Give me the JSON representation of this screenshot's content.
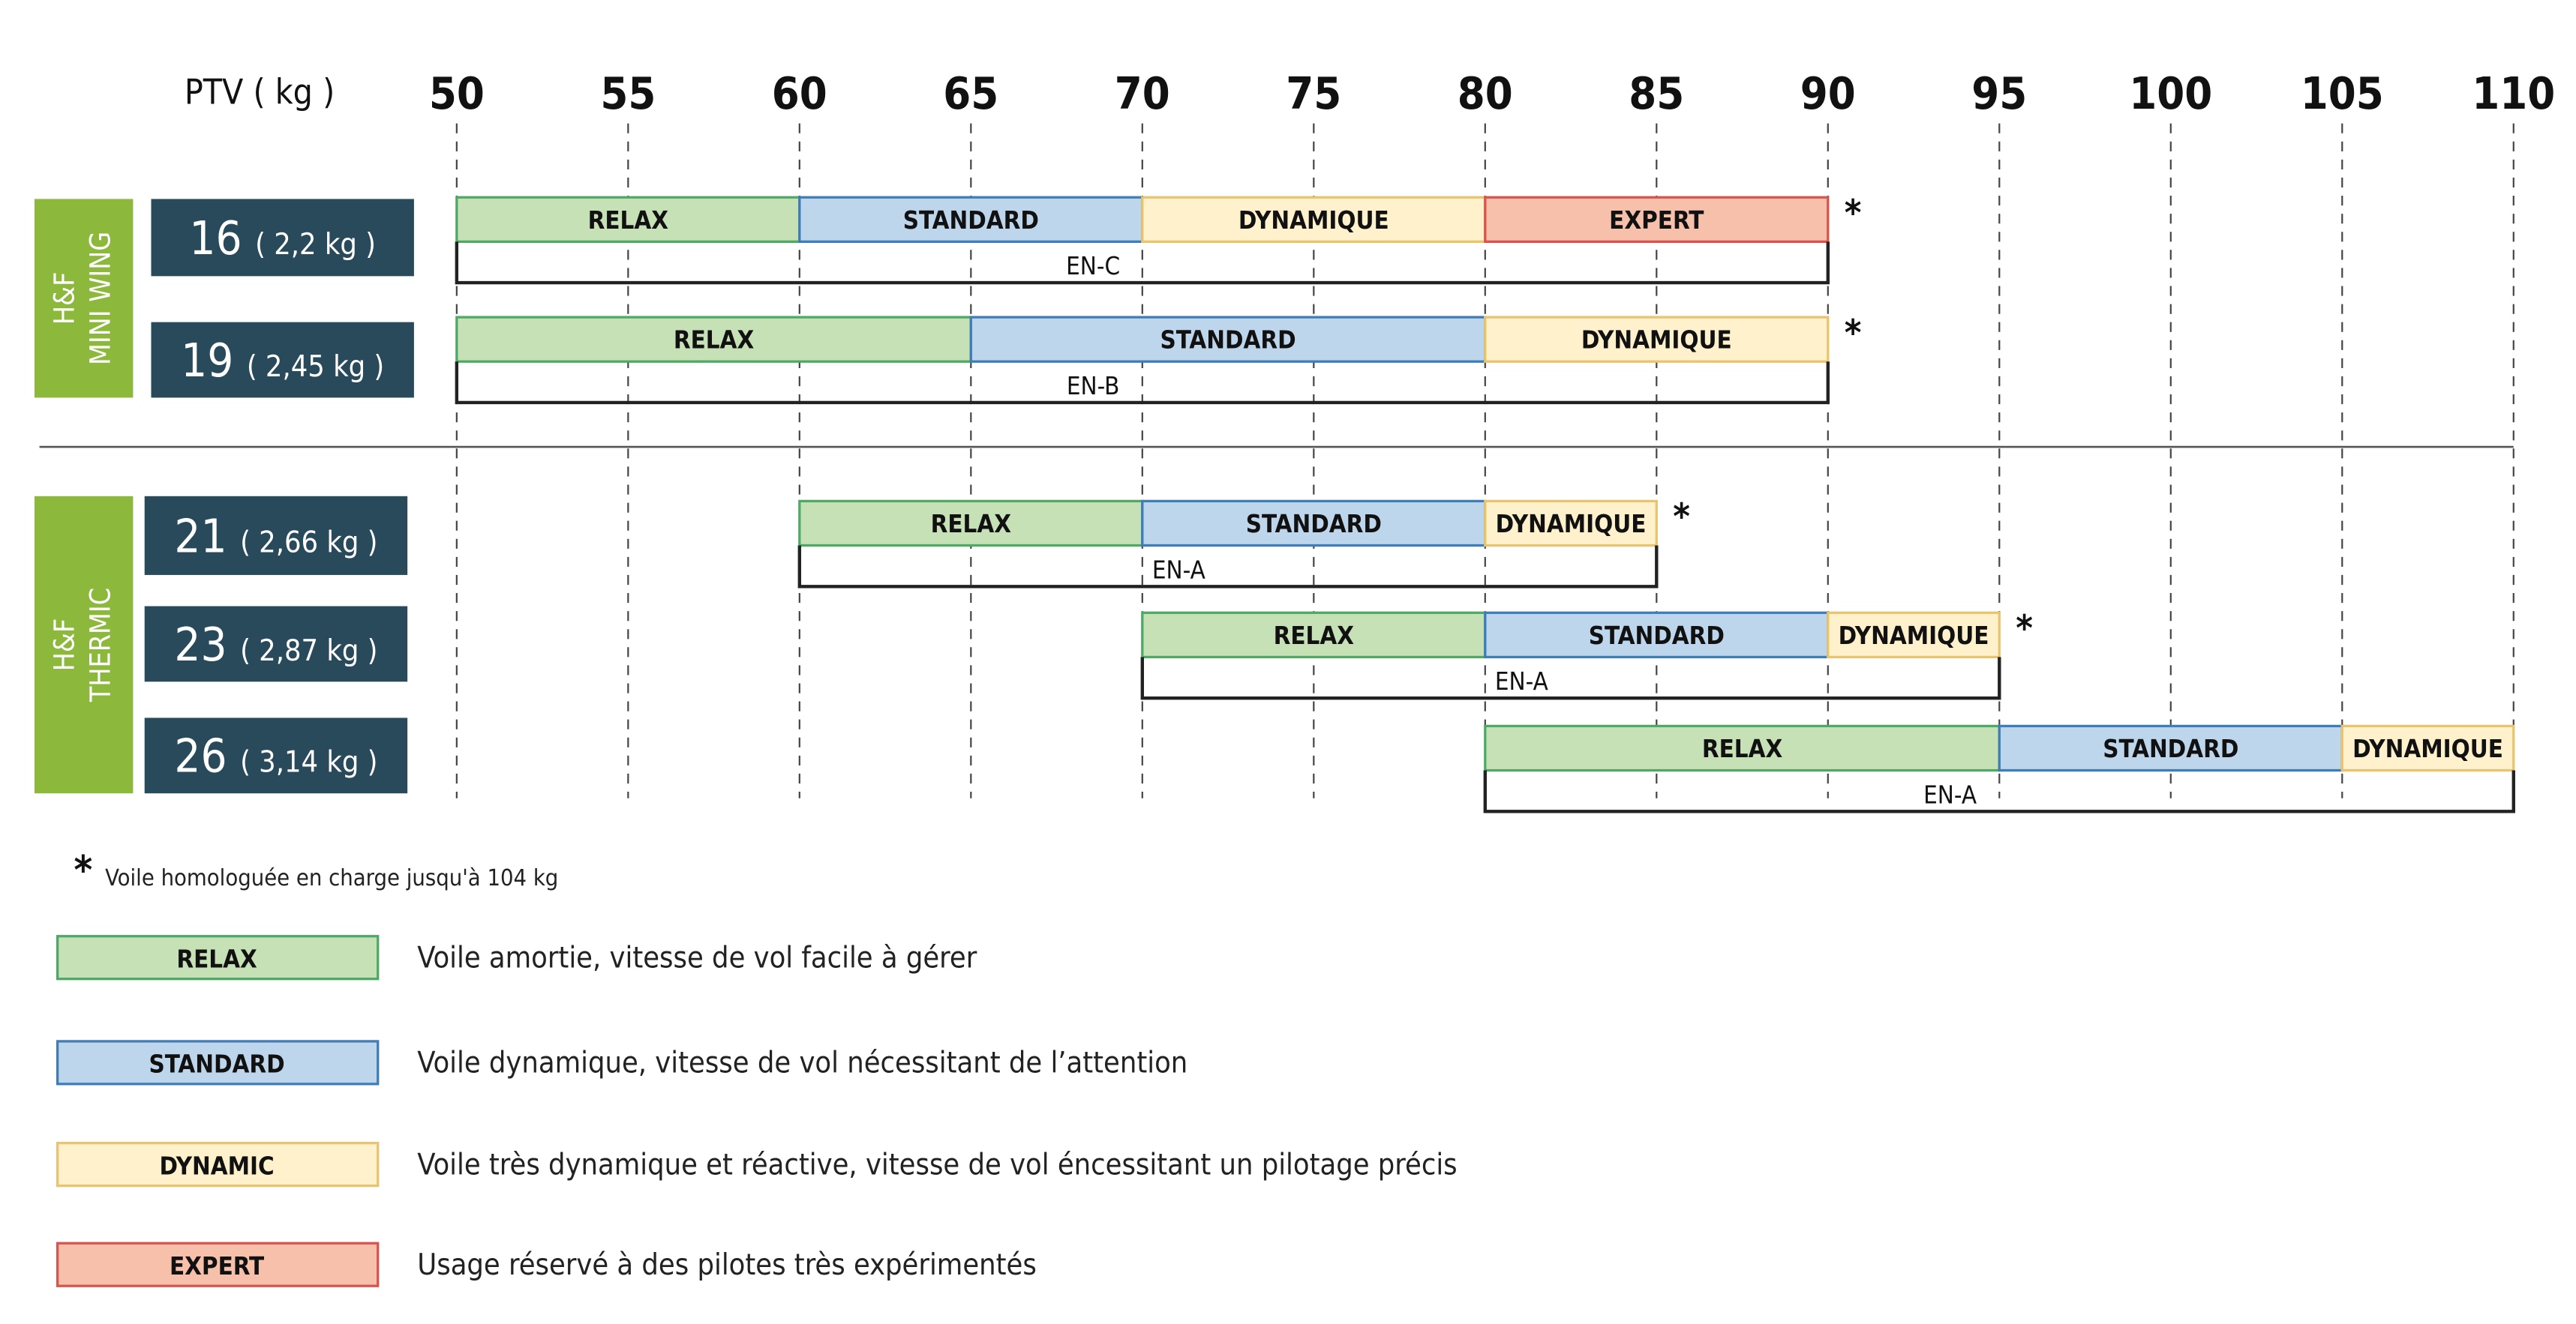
{
  "chart_data": {
    "type": "range-bar",
    "axis_label": "PTV ( kg )",
    "xlim": [
      50,
      110
    ],
    "ticks": [
      50,
      55,
      60,
      65,
      70,
      75,
      80,
      85,
      90,
      95,
      100,
      105,
      110
    ],
    "grid": "vertical-dashed",
    "groups": [
      {
        "name_line1": "H&F",
        "name_line2": "MINI WING",
        "color": "#8cb83c"
      },
      {
        "name_line1": "H&F",
        "name_line2": "THERMIC",
        "color": "#8cb83c"
      }
    ],
    "rows": [
      {
        "group": 0,
        "size": "16",
        "weight": "( 2,2 kg )",
        "certification": "EN-C",
        "cert_range": [
          50,
          90
        ],
        "asterisk": "*",
        "segments": [
          {
            "label": "RELAX",
            "cls": "relax",
            "from": 50,
            "to": 60
          },
          {
            "label": "STANDARD",
            "cls": "standard",
            "from": 60,
            "to": 70
          },
          {
            "label": "DYNAMIQUE",
            "cls": "dynamic",
            "from": 70,
            "to": 80
          },
          {
            "label": "EXPERT",
            "cls": "expert",
            "from": 80,
            "to": 90
          }
        ]
      },
      {
        "group": 0,
        "size": "19",
        "weight": "( 2,45 kg )",
        "certification": "EN-B",
        "cert_range": [
          50,
          90
        ],
        "asterisk": "*",
        "segments": [
          {
            "label": "RELAX",
            "cls": "relax",
            "from": 50,
            "to": 65
          },
          {
            "label": "STANDARD",
            "cls": "standard",
            "from": 65,
            "to": 80
          },
          {
            "label": "DYNAMIQUE",
            "cls": "dynamic",
            "from": 80,
            "to": 90
          }
        ]
      },
      {
        "group": 1,
        "size": "21",
        "weight": "( 2,66 kg )",
        "certification": "EN-A",
        "cert_range": [
          60,
          85
        ],
        "asterisk": "*",
        "segments": [
          {
            "label": "RELAX",
            "cls": "relax",
            "from": 60,
            "to": 70
          },
          {
            "label": "STANDARD",
            "cls": "standard",
            "from": 70,
            "to": 80
          },
          {
            "label": "DYNAMIQUE",
            "cls": "dynamic",
            "from": 80,
            "to": 85
          }
        ]
      },
      {
        "group": 1,
        "size": "23",
        "weight": "( 2,87 kg )",
        "certification": "EN-A",
        "cert_range": [
          70,
          95
        ],
        "asterisk": "*",
        "segments": [
          {
            "label": "RELAX",
            "cls": "relax",
            "from": 70,
            "to": 80
          },
          {
            "label": "STANDARD",
            "cls": "standard",
            "from": 80,
            "to": 90
          },
          {
            "label": "DYNAMIQUE",
            "cls": "dynamic",
            "from": 90,
            "to": 95
          }
        ]
      },
      {
        "group": 1,
        "size": "26",
        "weight": "( 3,14 kg )",
        "certification": "EN-A",
        "cert_range": [
          80,
          110
        ],
        "asterisk": "",
        "segments": [
          {
            "label": "RELAX",
            "cls": "relax",
            "from": 80,
            "to": 95
          },
          {
            "label": "STANDARD",
            "cls": "standard",
            "from": 95,
            "to": 105
          },
          {
            "label": "DYNAMIQUE",
            "cls": "dynamic",
            "from": 105,
            "to": 110
          }
        ]
      }
    ],
    "footnote": {
      "mark": "*",
      "text": "Voile homologuée en charge jusqu'à 104 kg"
    },
    "legend": [
      {
        "label": "RELAX",
        "cls": "relax",
        "description": "Voile amortie, vitesse de vol facile à gérer"
      },
      {
        "label": "STANDARD",
        "cls": "standard",
        "description": "Voile dynamique, vitesse de vol nécessitant de l’attention"
      },
      {
        "label": "DYNAMIC",
        "cls": "dynamic",
        "description": "Voile très dynamique et réactive, vitesse de vol éncessitant un pilotage précis"
      },
      {
        "label": "EXPERT",
        "cls": "expert",
        "description": "Usage réservé à des pilotes très expérimentés"
      }
    ],
    "colors": {
      "relax": {
        "fill": "#c7e1b6",
        "stroke": "#4ea866"
      },
      "standard": {
        "fill": "#bed6ec",
        "stroke": "#3f7db8"
      },
      "dynamic": {
        "fill": "#fff1cc",
        "stroke": "#e9c46e"
      },
      "expert": {
        "fill": "#f6c0ab",
        "stroke": "#d9534f"
      },
      "size_box": "#284a5b"
    }
  }
}
